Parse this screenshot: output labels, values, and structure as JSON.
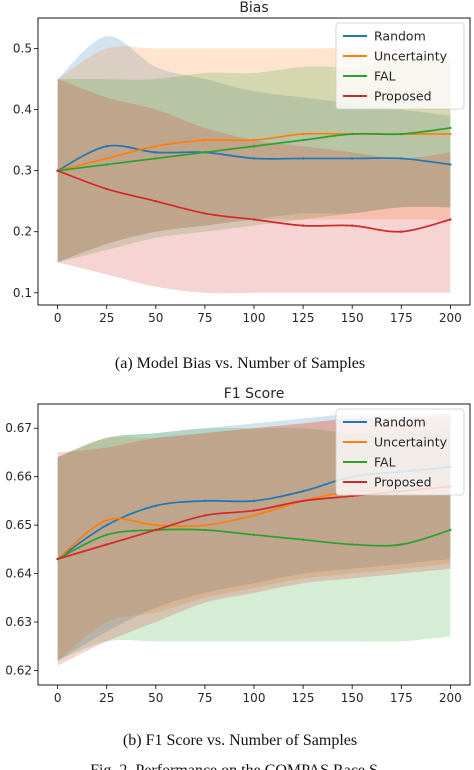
{
  "colors": {
    "random": "#1f77b4",
    "uncertainty": "#ff7f0e",
    "fal": "#2ca02c",
    "proposed": "#d62728"
  },
  "captions": {
    "a": "(a) Model Bias vs. Number of Samples",
    "b": "(b) F1 Score vs. Number of Samples"
  },
  "footer_partial": "Fig. 2. Performance on the COMPAS Race S...",
  "chart_data": [
    {
      "type": "line",
      "title": "Bias",
      "xlabel": "",
      "ylabel": "",
      "xlim": [
        -10,
        210
      ],
      "ylim": [
        0.08,
        0.55
      ],
      "xticks": [
        0,
        25,
        50,
        75,
        100,
        125,
        150,
        175,
        200
      ],
      "yticks": [
        0.1,
        0.2,
        0.3,
        0.4,
        0.5
      ],
      "ytick_labels": [
        "0.1",
        "0.2",
        "0.3",
        "0.4",
        "0.5"
      ],
      "grid": false,
      "legend": "top-right",
      "x": [
        0,
        25,
        50,
        75,
        100,
        125,
        150,
        175,
        200
      ],
      "series": [
        {
          "name": "Random",
          "color_key": "random",
          "values": [
            0.3,
            0.34,
            0.33,
            0.33,
            0.32,
            0.32,
            0.32,
            0.32,
            0.31
          ],
          "lower": [
            0.15,
            0.18,
            0.2,
            0.21,
            0.22,
            0.23,
            0.23,
            0.24,
            0.24
          ],
          "upper": [
            0.45,
            0.52,
            0.47,
            0.45,
            0.43,
            0.42,
            0.41,
            0.4,
            0.39
          ]
        },
        {
          "name": "Uncertainty",
          "color_key": "uncertainty",
          "values": [
            0.3,
            0.32,
            0.34,
            0.35,
            0.35,
            0.36,
            0.36,
            0.36,
            0.36
          ],
          "lower": [
            0.15,
            0.18,
            0.2,
            0.21,
            0.22,
            0.22,
            0.22,
            0.22,
            0.22
          ],
          "upper": [
            0.45,
            0.5,
            0.5,
            0.5,
            0.5,
            0.5,
            0.5,
            0.49,
            0.49
          ]
        },
        {
          "name": "FAL",
          "color_key": "fal",
          "values": [
            0.3,
            0.31,
            0.32,
            0.33,
            0.34,
            0.35,
            0.36,
            0.36,
            0.37
          ],
          "lower": [
            0.15,
            0.17,
            0.19,
            0.2,
            0.21,
            0.22,
            0.23,
            0.24,
            0.24
          ],
          "upper": [
            0.45,
            0.45,
            0.45,
            0.46,
            0.46,
            0.47,
            0.47,
            0.48,
            0.48
          ]
        },
        {
          "name": "Proposed",
          "color_key": "proposed",
          "values": [
            0.3,
            0.27,
            0.25,
            0.23,
            0.22,
            0.21,
            0.21,
            0.2,
            0.22
          ],
          "lower": [
            0.15,
            0.13,
            0.11,
            0.1,
            0.1,
            0.1,
            0.1,
            0.1,
            0.1
          ],
          "upper": [
            0.45,
            0.42,
            0.4,
            0.37,
            0.35,
            0.34,
            0.33,
            0.32,
            0.33
          ]
        }
      ]
    },
    {
      "type": "line",
      "title": "F1 Score",
      "xlabel": "",
      "ylabel": "",
      "xlim": [
        -10,
        210
      ],
      "ylim": [
        0.617,
        0.675
      ],
      "xticks": [
        0,
        25,
        50,
        75,
        100,
        125,
        150,
        175,
        200
      ],
      "yticks": [
        0.62,
        0.63,
        0.64,
        0.65,
        0.66,
        0.67
      ],
      "ytick_labels": [
        "0.62",
        "0.63",
        "0.64",
        "0.65",
        "0.66",
        "0.67"
      ],
      "grid": false,
      "legend": "top-right",
      "x": [
        0,
        25,
        50,
        75,
        100,
        125,
        150,
        175,
        200
      ],
      "series": [
        {
          "name": "Random",
          "color_key": "random",
          "values": [
            0.643,
            0.65,
            0.654,
            0.655,
            0.655,
            0.657,
            0.66,
            0.661,
            0.662
          ],
          "lower": [
            0.622,
            0.628,
            0.633,
            0.636,
            0.638,
            0.64,
            0.641,
            0.642,
            0.643
          ],
          "upper": [
            0.664,
            0.668,
            0.669,
            0.67,
            0.671,
            0.672,
            0.673,
            0.673,
            0.673
          ]
        },
        {
          "name": "Uncertainty",
          "color_key": "uncertainty",
          "values": [
            0.643,
            0.651,
            0.65,
            0.65,
            0.652,
            0.655,
            0.657,
            0.657,
            0.658
          ],
          "lower": [
            0.622,
            0.63,
            0.632,
            0.635,
            0.637,
            0.639,
            0.64,
            0.641,
            0.642
          ],
          "upper": [
            0.664,
            0.668,
            0.668,
            0.669,
            0.67,
            0.671,
            0.672,
            0.672,
            0.672
          ]
        },
        {
          "name": "FAL",
          "color_key": "fal",
          "values": [
            0.643,
            0.648,
            0.649,
            0.649,
            0.648,
            0.647,
            0.646,
            0.646,
            0.649
          ],
          "lower": [
            0.622,
            0.626,
            0.626,
            0.626,
            0.626,
            0.626,
            0.626,
            0.626,
            0.627
          ],
          "upper": [
            0.664,
            0.668,
            0.669,
            0.67,
            0.67,
            0.67,
            0.669,
            0.669,
            0.67
          ]
        },
        {
          "name": "Proposed",
          "color_key": "proposed",
          "values": [
            0.643,
            0.646,
            0.649,
            0.652,
            0.653,
            0.655,
            0.656,
            0.657,
            0.658
          ],
          "lower": [
            0.621,
            0.626,
            0.63,
            0.634,
            0.636,
            0.638,
            0.639,
            0.64,
            0.641
          ],
          "upper": [
            0.665,
            0.666,
            0.668,
            0.669,
            0.67,
            0.671,
            0.672,
            0.672,
            0.673
          ]
        }
      ]
    }
  ]
}
